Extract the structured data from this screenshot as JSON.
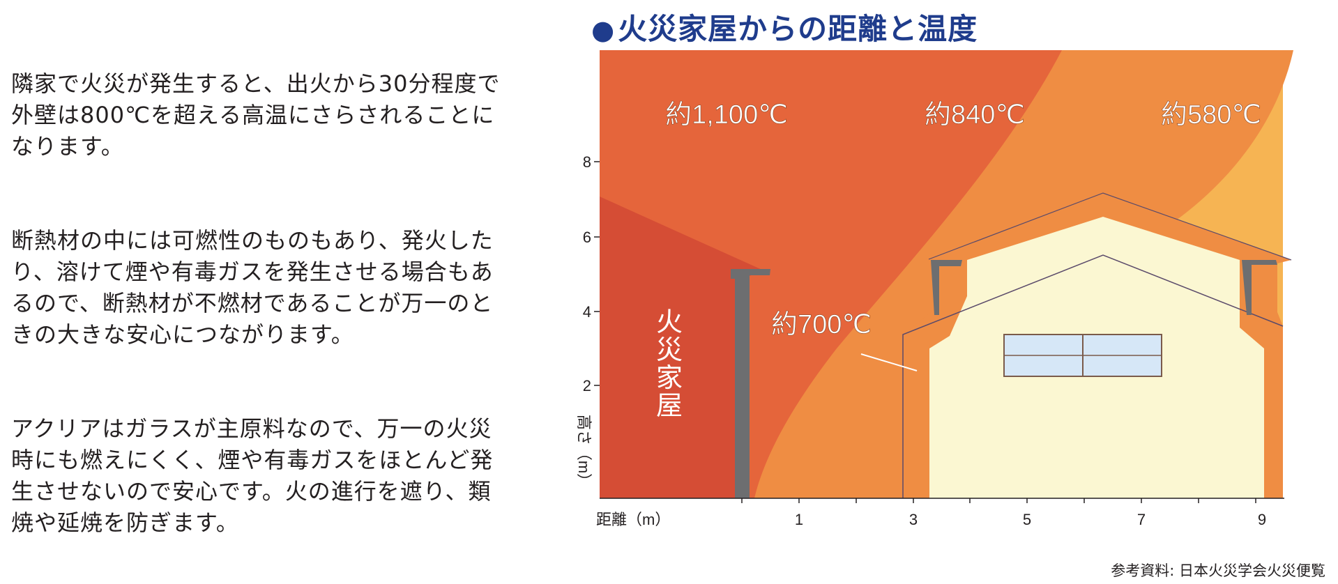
{
  "body_text": {
    "paragraphs": [
      "隣家で火災が発生すると、出火から30分程度で外壁は800℃を超える高温にさらされることになります。",
      "断熱材の中には可燃性のものもあり、発火したり、溶けて煙や有毒ガスを発生させる場合もあるので、断熱材が不燃材であることが万一のときの大きな安心につながります。",
      "アクリアはガラスが主原料なので、万一の火災時にも燃えにくく、煙や有毒ガスをほとんど発生させないので安心です。火の進行を遮り、類焼や延焼を防ぎます。"
    ]
  },
  "title": {
    "bullet": "●",
    "text": "火災家屋からの距離と温度"
  },
  "diagram": {
    "zones": [
      {
        "label": "約1,100℃",
        "color": "#e5653b"
      },
      {
        "label": "約840℃",
        "color": "#ef8d43"
      },
      {
        "label": "約580℃",
        "color": "#f6b453"
      }
    ],
    "wall_label": "約700℃",
    "burning_house_label": [
      "火",
      "災",
      "家",
      "屋"
    ],
    "x_axis": {
      "label": "距離（m）",
      "ticks": [
        "1",
        "3",
        "5",
        "7",
        "9"
      ]
    },
    "y_axis": {
      "label": "高さ（m）",
      "ticks": [
        "2",
        "4",
        "6",
        "8"
      ]
    },
    "colors": {
      "burning_house": "#d54d35",
      "wall_gray": "#6d6e70",
      "house_outline": "#ef8d43",
      "house_interior": "#fbf7d2",
      "window": "#d6e7f7"
    }
  },
  "source": "参考資料: 日本火災学会火災便覧"
}
